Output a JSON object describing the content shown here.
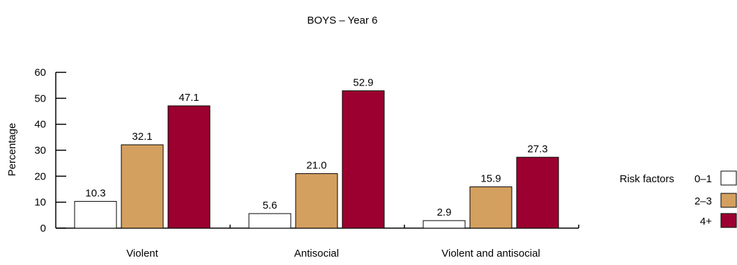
{
  "chart_data": {
    "type": "bar",
    "title": "BOYS – Year 6",
    "xlabel": "",
    "ylabel": "Percentage",
    "categories": [
      "Violent",
      "Antisocial",
      "Violent and antisocial"
    ],
    "series": [
      {
        "name": "0–1",
        "values": [
          10.3,
          5.6,
          2.9
        ],
        "labels": [
          "10.3",
          "5.6",
          "2.9"
        ],
        "color": "#ffffff"
      },
      {
        "name": "2–3",
        "values": [
          32.1,
          21.0,
          15.9
        ],
        "labels": [
          "32.1",
          "21.0",
          "15.9"
        ],
        "color": "#d4a060"
      },
      {
        "name": "4+",
        "values": [
          47.1,
          52.9,
          27.3
        ],
        "labels": [
          "47.1",
          "52.9",
          "27.3"
        ],
        "color": "#9b0030"
      }
    ],
    "ylim": [
      0,
      60
    ],
    "yticks": [
      0,
      10,
      20,
      30,
      40,
      50,
      60
    ],
    "grid": false,
    "legend_title": "Risk factors",
    "legend_position": "right"
  }
}
